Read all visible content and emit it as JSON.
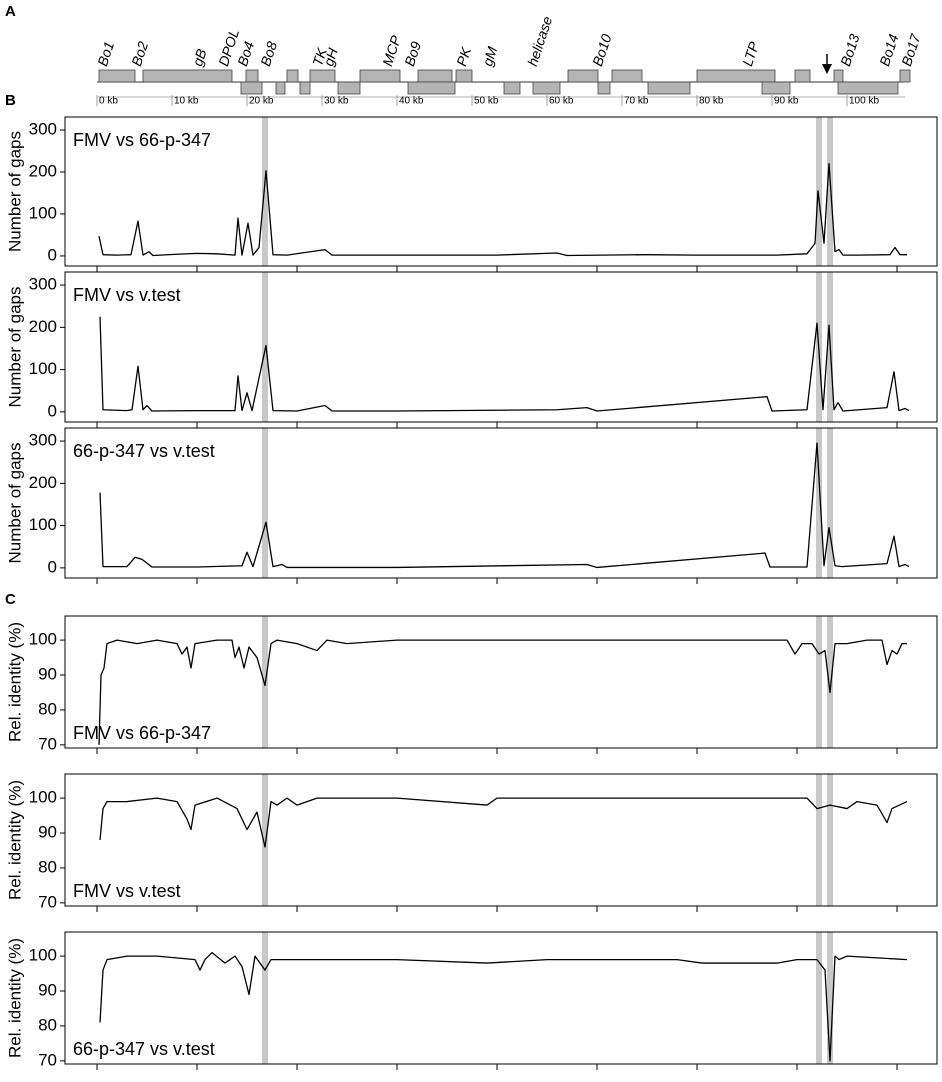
{
  "panel_labels": [
    "A",
    "B",
    "C"
  ],
  "genome_map": {
    "genes": [
      "Bo1",
      "Bo2",
      "gB",
      "DPOL",
      "Bo4",
      "Bo8",
      "TK",
      "gH",
      "MCP",
      "Bo9",
      "PK",
      "gM",
      "helicase",
      "Bo10",
      "LTP",
      "Bo13",
      "Bo14",
      "Bo17"
    ],
    "scale_labels": [
      "0 kb",
      "10 kb",
      "20 kb",
      "30 kb",
      "40 kb",
      "50 kb",
      "60 kb",
      "70 kb",
      "80 kb",
      "90 kb",
      "100 kb"
    ]
  },
  "chart_data": [
    {
      "type": "line",
      "label": "FMV vs 66-p-347",
      "ylabel": "Number of gaps",
      "color": "#000000",
      "x": [
        0.02,
        0.06,
        0.2,
        0.34,
        0.41,
        0.46,
        0.52,
        0.56,
        0.8,
        1.0,
        1.2,
        1.38,
        1.41,
        1.45,
        1.51,
        1.56,
        1.62,
        1.69,
        1.76,
        1.9,
        2.28,
        2.35,
        3.0,
        4.0,
        4.6,
        4.7,
        5.5,
        6.0,
        6.8,
        7.1,
        7.18,
        7.21,
        7.27,
        7.32,
        7.38,
        7.42,
        7.46,
        7.6,
        7.93,
        7.98,
        8.03,
        8.1
      ],
      "values": [
        47,
        3,
        2,
        3,
        83,
        2,
        10,
        1,
        4,
        6,
        5,
        2,
        90,
        2,
        78,
        2,
        20,
        203,
        3,
        2,
        15,
        2,
        2,
        2,
        7,
        1,
        3,
        2,
        2,
        5,
        30,
        155,
        30,
        220,
        10,
        15,
        2,
        2,
        3,
        20,
        3,
        3
      ],
      "xlim": [
        -0.32,
        8.4
      ],
      "xticks": [
        0,
        1,
        2,
        3,
        4,
        5,
        6,
        7,
        8
      ],
      "ylim": [
        -24,
        331
      ],
      "yticks": [
        0,
        100,
        200,
        300
      ],
      "highlight_x": [
        1.68,
        7.22,
        7.33
      ]
    },
    {
      "type": "line",
      "label": "FMV vs v.test",
      "ylabel": "Number of gaps",
      "color": "#000000",
      "x": [
        0.03,
        0.06,
        0.3,
        0.35,
        0.41,
        0.46,
        0.5,
        0.55,
        1.0,
        1.38,
        1.41,
        1.45,
        1.5,
        1.55,
        1.69,
        1.76,
        2.0,
        2.28,
        2.35,
        3.0,
        4.6,
        4.9,
        5.0,
        6.7,
        6.75,
        7.1,
        7.2,
        7.26,
        7.32,
        7.37,
        7.41,
        7.46,
        7.9,
        7.97,
        8.02,
        8.08,
        8.12
      ],
      "values": [
        225,
        5,
        3,
        5,
        108,
        5,
        15,
        2,
        3,
        3,
        85,
        3,
        45,
        3,
        157,
        3,
        2,
        15,
        2,
        2,
        5,
        10,
        2,
        36,
        2,
        5,
        210,
        5,
        205,
        5,
        22,
        2,
        10,
        95,
        3,
        8,
        3
      ],
      "xlim": [
        -0.32,
        8.4
      ],
      "xticks": [
        0,
        1,
        2,
        3,
        4,
        5,
        6,
        7,
        8
      ],
      "ylim": [
        -24,
        331
      ],
      "yticks": [
        0,
        100,
        200,
        300
      ],
      "highlight_x": [
        1.68,
        7.22,
        7.33
      ]
    },
    {
      "type": "line",
      "label": "66-p-347 vs v.test",
      "ylabel": "Number of gaps",
      "color": "#000000",
      "x": [
        0.03,
        0.06,
        0.3,
        0.38,
        0.45,
        0.55,
        1.0,
        1.45,
        1.5,
        1.56,
        1.69,
        1.76,
        1.85,
        1.9,
        3.0,
        4.9,
        5.0,
        6.68,
        6.73,
        7.1,
        7.2,
        7.27,
        7.32,
        7.38,
        7.45,
        7.9,
        7.97,
        8.02,
        8.08,
        8.12
      ],
      "values": [
        178,
        3,
        3,
        25,
        20,
        2,
        2,
        5,
        37,
        3,
        108,
        3,
        8,
        1,
        1,
        8,
        1,
        35,
        2,
        2,
        295,
        5,
        95,
        5,
        3,
        10,
        75,
        3,
        8,
        3
      ],
      "xlim": [
        -0.32,
        8.4
      ],
      "xticks": [
        0,
        1,
        2,
        3,
        4,
        5,
        6,
        7,
        8
      ],
      "ylim": [
        -24,
        331
      ],
      "yticks": [
        0,
        100,
        200,
        300
      ],
      "highlight_x": [
        1.68,
        7.22,
        7.33
      ]
    },
    {
      "type": "line",
      "label": "FMV vs 66-p-347",
      "ylabel": "Rel. identity (%)",
      "color": "#000000",
      "x": [
        0.02,
        0.04,
        0.07,
        0.1,
        0.2,
        0.4,
        0.6,
        0.8,
        0.85,
        0.9,
        0.94,
        0.98,
        1.2,
        1.35,
        1.38,
        1.42,
        1.47,
        1.52,
        1.6,
        1.68,
        1.74,
        1.8,
        2.0,
        2.2,
        2.3,
        2.5,
        3,
        4,
        5,
        6,
        6.5,
        6.9,
        6.98,
        7.05,
        7.15,
        7.22,
        7.28,
        7.33,
        7.38,
        7.5,
        7.7,
        7.85,
        7.9,
        7.95,
        8.0,
        8.05,
        8.1
      ],
      "values": [
        70,
        90,
        92,
        99,
        100,
        99,
        100,
        99,
        96,
        98,
        92,
        99,
        100,
        100,
        95,
        98,
        92,
        98,
        95,
        87,
        99,
        100,
        99,
        97,
        100,
        99,
        100,
        100,
        100,
        100,
        100,
        100,
        96,
        99,
        99,
        96,
        97,
        85,
        99,
        99,
        100,
        100,
        93,
        97,
        96,
        99,
        99
      ],
      "xlim": [
        -0.32,
        8.4
      ],
      "xticks": [
        0,
        1,
        2,
        3,
        4,
        5,
        6,
        7,
        8
      ],
      "ylim": [
        69.1,
        106.9
      ],
      "yticks": [
        70,
        80,
        90,
        100
      ],
      "highlight_x": [
        1.68,
        7.22,
        7.33
      ]
    },
    {
      "type": "line",
      "label": "FMV vs v.test",
      "ylabel": "Rel. identity (%)",
      "color": "#000000",
      "x": [
        0.03,
        0.06,
        0.1,
        0.3,
        0.6,
        0.8,
        0.9,
        0.94,
        0.98,
        1.2,
        1.4,
        1.5,
        1.6,
        1.68,
        1.74,
        1.8,
        1.9,
        2.0,
        2.2,
        3,
        3.9,
        4,
        5,
        6,
        7.1,
        7.2,
        7.33,
        7.5,
        7.6,
        7.8,
        7.9,
        7.95,
        8.1
      ],
      "values": [
        88,
        97,
        99,
        99,
        100,
        99,
        94,
        91,
        98,
        100,
        97,
        91,
        96,
        86,
        99,
        98,
        100,
        98,
        100,
        100,
        98,
        100,
        100,
        100,
        100,
        97,
        98,
        97,
        99,
        98,
        93,
        97,
        99
      ],
      "xlim": [
        -0.32,
        8.4
      ],
      "xticks": [
        0,
        1,
        2,
        3,
        4,
        5,
        6,
        7,
        8
      ],
      "ylim": [
        69.1,
        106.9
      ],
      "yticks": [
        70,
        80,
        90,
        100
      ],
      "highlight_x": [
        1.68,
        7.22,
        7.33
      ]
    },
    {
      "type": "line",
      "label": "66-p-347 vs v.test",
      "ylabel": "Rel. identity (%)",
      "color": "#000000",
      "x": [
        0.03,
        0.06,
        0.1,
        0.3,
        0.6,
        0.98,
        1.03,
        1.08,
        1.15,
        1.28,
        1.38,
        1.45,
        1.52,
        1.58,
        1.68,
        1.74,
        2.0,
        3,
        3.9,
        4.5,
        5.8,
        6.05,
        6.5,
        6.8,
        7.0,
        7.2,
        7.28,
        7.33,
        7.38,
        7.42,
        7.5,
        8.1
      ],
      "values": [
        81,
        96,
        99,
        100,
        100,
        99,
        96,
        99,
        101,
        98,
        100,
        97,
        89,
        100,
        96,
        99,
        99,
        99,
        98,
        99,
        99,
        98,
        98,
        98,
        99,
        99,
        96,
        70,
        100,
        99,
        100,
        99
      ],
      "xlim": [
        -0.32,
        8.4
      ],
      "xticks": [
        0,
        1,
        2,
        3,
        4,
        5,
        6,
        7,
        8
      ],
      "ylim": [
        69.1,
        106.9
      ],
      "yticks": [
        70,
        80,
        90,
        100
      ],
      "highlight_x": [
        1.68,
        7.22,
        7.33
      ]
    }
  ]
}
